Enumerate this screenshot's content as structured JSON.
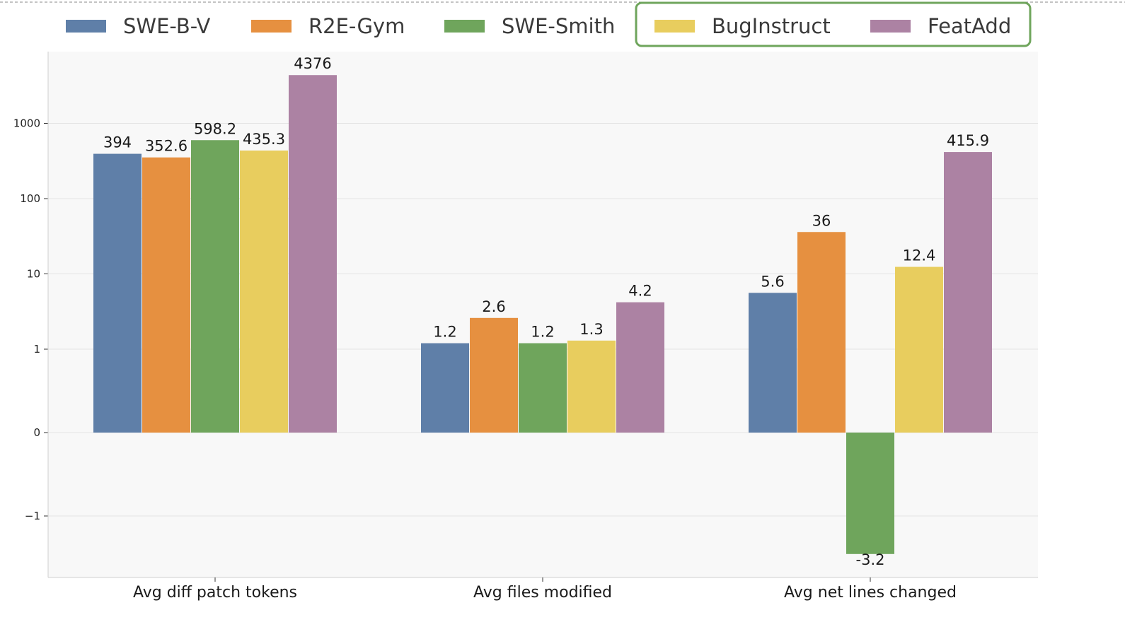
{
  "chart_data": {
    "type": "bar",
    "categories": [
      "Avg diff patch tokens",
      "Avg files modified",
      "Avg net lines changed"
    ],
    "series": [
      {
        "name": "SWE-B-V",
        "color": "#5f7fa8",
        "values": [
          394,
          1.2,
          5.6
        ],
        "labels": [
          "394",
          "1.2",
          "5.6"
        ]
      },
      {
        "name": "R2E-Gym",
        "color": "#e69040",
        "values": [
          352.6,
          2.6,
          36
        ],
        "labels": [
          "352.6",
          "2.6",
          "36"
        ]
      },
      {
        "name": "SWE-Smith",
        "color": "#6fa55c",
        "values": [
          598.2,
          1.2,
          -3.2
        ],
        "labels": [
          "598.2",
          "1.2",
          "-3.2"
        ]
      },
      {
        "name": "BugInstruct",
        "color": "#e8cd5e",
        "values": [
          435.3,
          1.3,
          12.4
        ],
        "labels": [
          "435.3",
          "1.3",
          "12.4"
        ]
      },
      {
        "name": "FeatAdd",
        "color": "#ac82a3",
        "values": [
          4376,
          4.2,
          415.9
        ],
        "labels": [
          "4376",
          "4.2",
          "415.9"
        ]
      }
    ],
    "yscale": "symlog",
    "yticks": [
      {
        "value": -1,
        "label": "−1"
      },
      {
        "value": 0,
        "label": "0"
      },
      {
        "value": 1,
        "label": "1"
      },
      {
        "value": 10,
        "label": "10"
      },
      {
        "value": 100,
        "label": "100"
      },
      {
        "value": 1000,
        "label": "1000"
      }
    ],
    "grid": true,
    "legend_position": "top",
    "legend_highlight": {
      "series": [
        "BugInstruct",
        "FeatAdd"
      ],
      "color": "#6fa55c"
    },
    "title": "",
    "xlabel": "",
    "ylabel": ""
  }
}
